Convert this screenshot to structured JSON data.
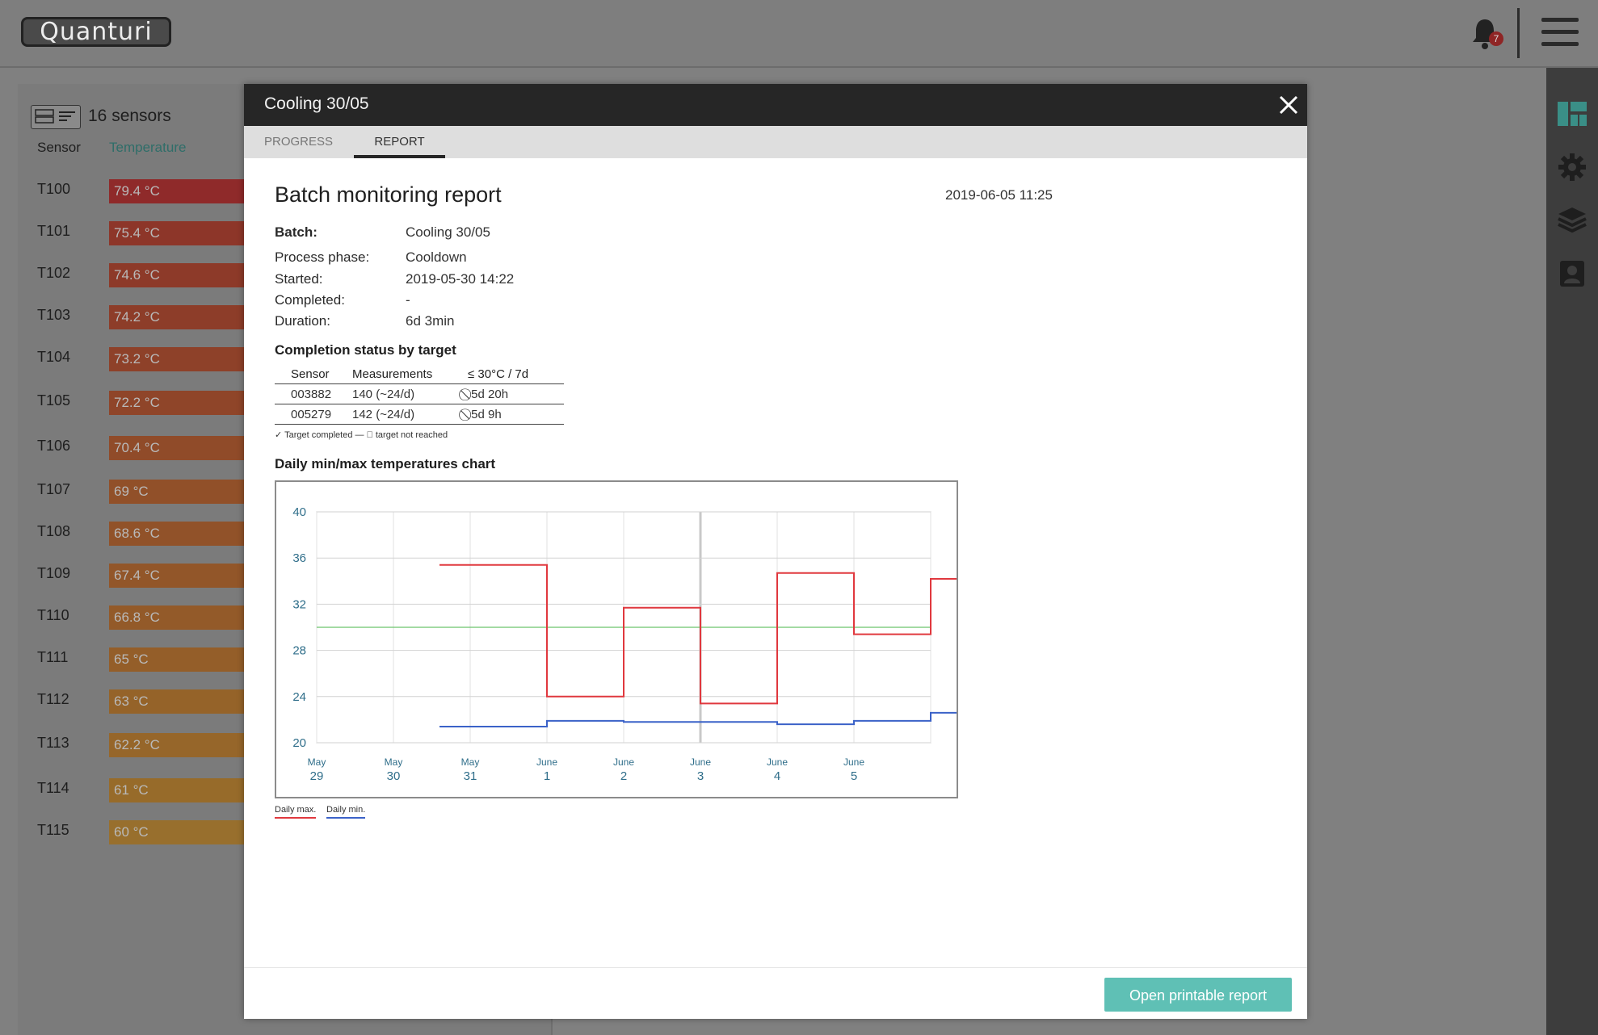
{
  "app": {
    "logo_text": "Quanturi",
    "notification_count": "7"
  },
  "sensor_panel": {
    "count_label": "16 sensors",
    "col_sensor": "Sensor",
    "col_temperature": "Temperature",
    "rows": [
      {
        "name": "T100",
        "temp": "79.4 °C",
        "color": "#8f2a2a"
      },
      {
        "name": "T101",
        "temp": "75.4 °C",
        "color": "#8d3629"
      },
      {
        "name": "T102",
        "temp": "74.6 °C",
        "color": "#8d3a29"
      },
      {
        "name": "T103",
        "temp": "74.2 °C",
        "color": "#8d3d29"
      },
      {
        "name": "T104",
        "temp": "73.2 °C",
        "color": "#8e4129"
      },
      {
        "name": "T105",
        "temp": "72.2 °C",
        "color": "#8f4529"
      },
      {
        "name": "T106",
        "temp": "70.4 °C",
        "color": "#904b29"
      },
      {
        "name": "T107",
        "temp": "69 °C",
        "color": "#915029"
      },
      {
        "name": "T108",
        "temp": "68.6 °C",
        "color": "#915229"
      },
      {
        "name": "T109",
        "temp": "67.4 °C",
        "color": "#925629"
      },
      {
        "name": "T110",
        "temp": "66.8 °C",
        "color": "#935a29"
      },
      {
        "name": "T111",
        "temp": "65 °C",
        "color": "#945e29"
      },
      {
        "name": "T112",
        "temp": "63 °C",
        "color": "#956329"
      },
      {
        "name": "T113",
        "temp": "62.2 °C",
        "color": "#96662a"
      },
      {
        "name": "T114",
        "temp": "61 °C",
        "color": "#976b2a"
      },
      {
        "name": "T115",
        "temp": "60 °C",
        "color": "#986f2d"
      }
    ]
  },
  "modal": {
    "title": "Cooling 30/05",
    "tabs": [
      {
        "label": "PROGRESS",
        "active": false
      },
      {
        "label": "REPORT",
        "active": true
      }
    ],
    "report": {
      "heading": "Batch monitoring report",
      "generated": "2019-06-05 11:25",
      "fields": [
        {
          "label": "Batch:",
          "value": "Cooling 30/05"
        },
        {
          "label": "Process phase:",
          "value": "Cooldown"
        },
        {
          "label": "Started:",
          "value": "2019-05-30 14:22"
        },
        {
          "label": "Completed:",
          "value": "-"
        },
        {
          "label": "Duration:",
          "value": "6d 3min"
        }
      ],
      "completion_heading": "Completion status by target",
      "completion_table": {
        "headers": [
          "Sensor",
          "Measurements",
          "≤ 30°C / 7d"
        ],
        "rows": [
          [
            "003882",
            "140 (~24/d)",
            "⃠ 5d 20h"
          ],
          [
            "005279",
            "142 (~24/d)",
            "⃠ 5d 9h"
          ]
        ]
      },
      "legend_note": "✓ Target completed — ⃠ target not reached",
      "chart_heading": "Daily min/max temperatures chart",
      "legend_max": "Daily max.",
      "legend_min": "Daily min."
    },
    "print_button": "Open printable report"
  },
  "colors": {
    "accent": "#5fc0b5",
    "max_line": "#e0383e",
    "min_line": "#3b62c8",
    "target_line": "#6cc46c"
  },
  "chart_data": {
    "type": "line",
    "x_labels": [
      [
        "May",
        "29"
      ],
      [
        "May",
        "30"
      ],
      [
        "May",
        "31"
      ],
      [
        "June",
        "1"
      ],
      [
        "June",
        "2"
      ],
      [
        "June",
        "3"
      ],
      [
        "June",
        "4"
      ],
      [
        "June",
        "5"
      ]
    ],
    "y_ticks": [
      20,
      24,
      28,
      32,
      36,
      40
    ],
    "ylim": [
      20,
      40
    ],
    "target": 30,
    "series": [
      {
        "name": "Daily max.",
        "step": true,
        "points": [
          [
            2,
            35.4
          ],
          [
            3,
            24
          ],
          [
            4,
            31.7
          ],
          [
            5,
            23.4
          ],
          [
            6,
            34.7
          ],
          [
            7,
            29.4
          ],
          [
            8,
            34.2
          ]
        ]
      },
      {
        "name": "Daily min.",
        "step": true,
        "points": [
          [
            2,
            21.4
          ],
          [
            3,
            21.9
          ],
          [
            4,
            21.8
          ],
          [
            5,
            21.8
          ],
          [
            6,
            21.6
          ],
          [
            7,
            21.9
          ],
          [
            8,
            22.6
          ]
        ]
      }
    ]
  }
}
